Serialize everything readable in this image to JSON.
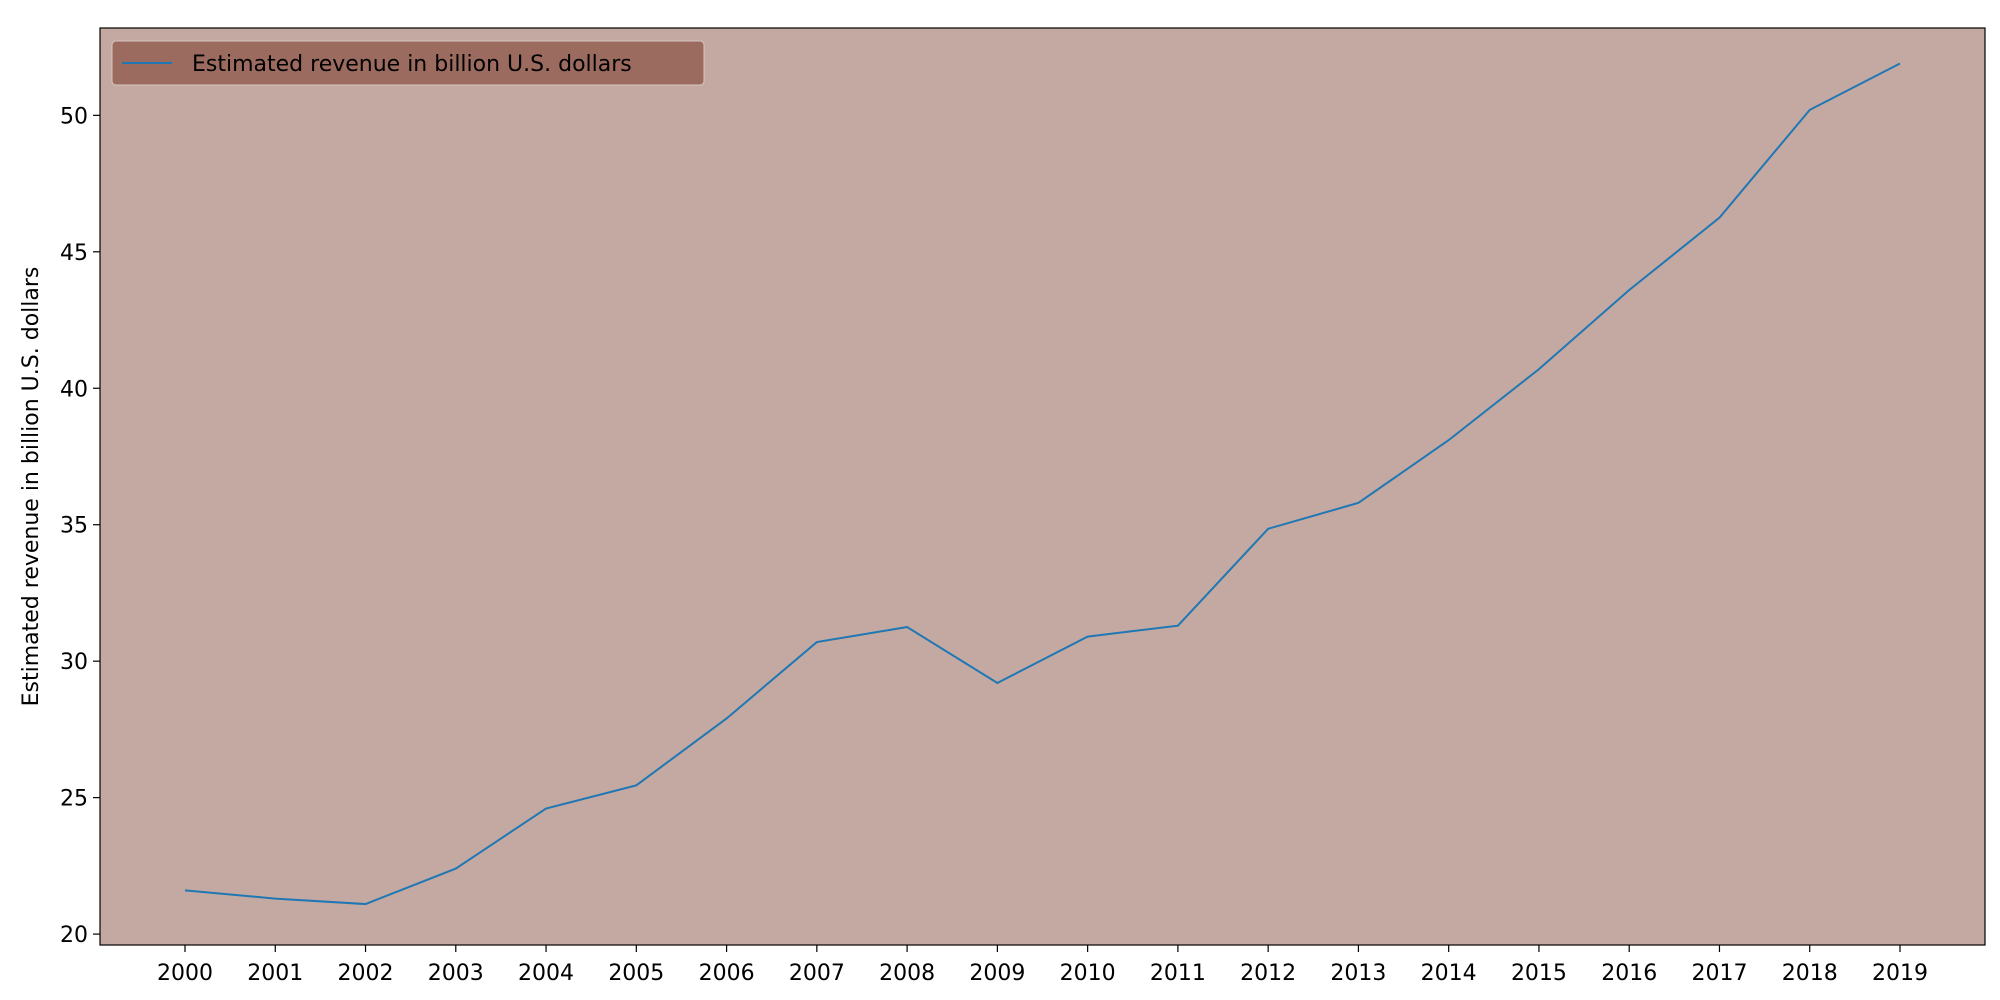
{
  "chart_data": {
    "type": "line",
    "title": "",
    "xlabel": "",
    "ylabel": "Estimated revenue in billion U.S. dollars",
    "x": [
      "2000",
      "2001",
      "2002",
      "2003",
      "2004",
      "2005",
      "2006",
      "2007",
      "2008",
      "2009",
      "2010",
      "2011",
      "2012",
      "2013",
      "2014",
      "2015",
      "2016",
      "2017",
      "2018",
      "2019"
    ],
    "series": [
      {
        "name": "Estimated revenue in billion U.S. dollars",
        "color": "#1f77b4",
        "values": [
          21.6,
          21.3,
          21.1,
          22.4,
          24.6,
          25.45,
          27.9,
          30.7,
          31.25,
          29.2,
          30.9,
          31.3,
          34.85,
          35.8,
          38.1,
          40.7,
          43.6,
          46.25,
          50.2,
          51.9
        ]
      }
    ],
    "ylim": [
      19.6,
      53.2
    ],
    "yticks": [
      20,
      25,
      30,
      35,
      40,
      45,
      50
    ],
    "grid": false,
    "legend_position": "top-left",
    "colors": {
      "plot_background": "#c4a9a2",
      "legend_background": "#9c6b60",
      "line": "#1f77b4"
    }
  }
}
